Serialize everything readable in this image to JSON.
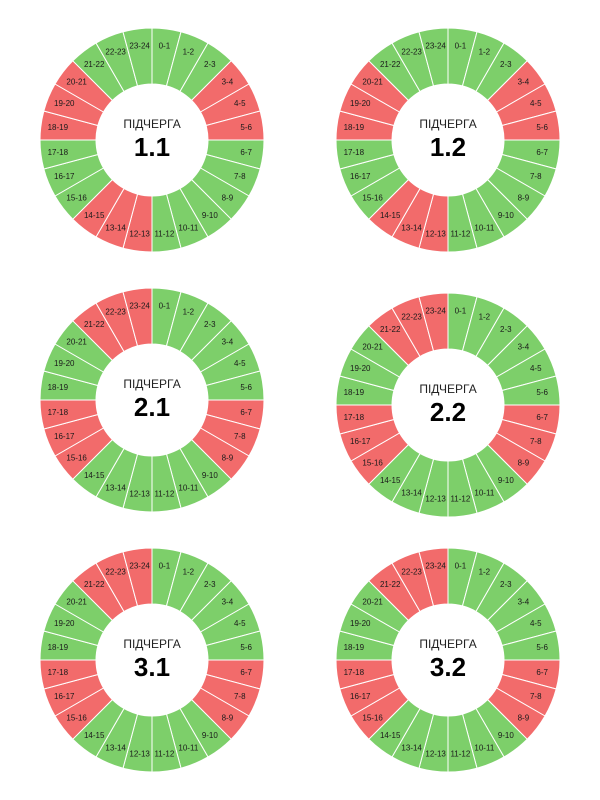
{
  "colors": {
    "on": "#7dcf6a",
    "off": "#f26b6b"
  },
  "charts": [
    {
      "caption": "ПІДЧЕРГА",
      "number": "1.1",
      "segments": [
        {
          "label": "0-1",
          "state": "on"
        },
        {
          "label": "1-2",
          "state": "on"
        },
        {
          "label": "2-3",
          "state": "on"
        },
        {
          "label": "3-4",
          "state": "off"
        },
        {
          "label": "4-5",
          "state": "off"
        },
        {
          "label": "5-6",
          "state": "off"
        },
        {
          "label": "6-7",
          "state": "on"
        },
        {
          "label": "7-8",
          "state": "on"
        },
        {
          "label": "8-9",
          "state": "on"
        },
        {
          "label": "9-10",
          "state": "on"
        },
        {
          "label": "10-11",
          "state": "on"
        },
        {
          "label": "11-12",
          "state": "on"
        },
        {
          "label": "12-13",
          "state": "off"
        },
        {
          "label": "13-14",
          "state": "off"
        },
        {
          "label": "14-15",
          "state": "off"
        },
        {
          "label": "15-16",
          "state": "on"
        },
        {
          "label": "16-17",
          "state": "on"
        },
        {
          "label": "17-18",
          "state": "on"
        },
        {
          "label": "18-19",
          "state": "off"
        },
        {
          "label": "19-20",
          "state": "off"
        },
        {
          "label": "20-21",
          "state": "off"
        },
        {
          "label": "21-22",
          "state": "on"
        },
        {
          "label": "22-23",
          "state": "on"
        },
        {
          "label": "23-24",
          "state": "on"
        }
      ]
    },
    {
      "caption": "ПІДЧЕРГА",
      "number": "1.2",
      "segments": [
        {
          "label": "0-1",
          "state": "on"
        },
        {
          "label": "1-2",
          "state": "on"
        },
        {
          "label": "2-3",
          "state": "on"
        },
        {
          "label": "3-4",
          "state": "off"
        },
        {
          "label": "4-5",
          "state": "off"
        },
        {
          "label": "5-6",
          "state": "off"
        },
        {
          "label": "6-7",
          "state": "on"
        },
        {
          "label": "7-8",
          "state": "on"
        },
        {
          "label": "8-9",
          "state": "on"
        },
        {
          "label": "9-10",
          "state": "on"
        },
        {
          "label": "10-11",
          "state": "on"
        },
        {
          "label": "11-12",
          "state": "on"
        },
        {
          "label": "12-13",
          "state": "off"
        },
        {
          "label": "13-14",
          "state": "off"
        },
        {
          "label": "14-15",
          "state": "off"
        },
        {
          "label": "15-16",
          "state": "on"
        },
        {
          "label": "16-17",
          "state": "on"
        },
        {
          "label": "17-18",
          "state": "on"
        },
        {
          "label": "18-19",
          "state": "off"
        },
        {
          "label": "19-20",
          "state": "off"
        },
        {
          "label": "20-21",
          "state": "off"
        },
        {
          "label": "21-22",
          "state": "on"
        },
        {
          "label": "22-23",
          "state": "on"
        },
        {
          "label": "23-24",
          "state": "on"
        }
      ]
    },
    {
      "caption": "ПІДЧЕРГА",
      "number": "2.1",
      "segments": [
        {
          "label": "0-1",
          "state": "on"
        },
        {
          "label": "1-2",
          "state": "on"
        },
        {
          "label": "2-3",
          "state": "on"
        },
        {
          "label": "3-4",
          "state": "on"
        },
        {
          "label": "4-5",
          "state": "on"
        },
        {
          "label": "5-6",
          "state": "on"
        },
        {
          "label": "6-7",
          "state": "off"
        },
        {
          "label": "7-8",
          "state": "off"
        },
        {
          "label": "8-9",
          "state": "off"
        },
        {
          "label": "9-10",
          "state": "on"
        },
        {
          "label": "10-11",
          "state": "on"
        },
        {
          "label": "11-12",
          "state": "on"
        },
        {
          "label": "12-13",
          "state": "on"
        },
        {
          "label": "13-14",
          "state": "on"
        },
        {
          "label": "14-15",
          "state": "on"
        },
        {
          "label": "15-16",
          "state": "off"
        },
        {
          "label": "16-17",
          "state": "off"
        },
        {
          "label": "17-18",
          "state": "off"
        },
        {
          "label": "18-19",
          "state": "on"
        },
        {
          "label": "19-20",
          "state": "on"
        },
        {
          "label": "20-21",
          "state": "on"
        },
        {
          "label": "21-22",
          "state": "off"
        },
        {
          "label": "22-23",
          "state": "off"
        },
        {
          "label": "23-24",
          "state": "off"
        }
      ]
    },
    {
      "caption": "ПІДЧЕРГА",
      "number": "2.2",
      "segments": [
        {
          "label": "0-1",
          "state": "on"
        },
        {
          "label": "1-2",
          "state": "on"
        },
        {
          "label": "2-3",
          "state": "on"
        },
        {
          "label": "3-4",
          "state": "on"
        },
        {
          "label": "4-5",
          "state": "on"
        },
        {
          "label": "5-6",
          "state": "on"
        },
        {
          "label": "6-7",
          "state": "off"
        },
        {
          "label": "7-8",
          "state": "off"
        },
        {
          "label": "8-9",
          "state": "off"
        },
        {
          "label": "9-10",
          "state": "on"
        },
        {
          "label": "10-11",
          "state": "on"
        },
        {
          "label": "11-12",
          "state": "on"
        },
        {
          "label": "12-13",
          "state": "on"
        },
        {
          "label": "13-14",
          "state": "on"
        },
        {
          "label": "14-15",
          "state": "on"
        },
        {
          "label": "15-16",
          "state": "off"
        },
        {
          "label": "16-17",
          "state": "off"
        },
        {
          "label": "17-18",
          "state": "off"
        },
        {
          "label": "18-19",
          "state": "on"
        },
        {
          "label": "19-20",
          "state": "on"
        },
        {
          "label": "20-21",
          "state": "on"
        },
        {
          "label": "21-22",
          "state": "off"
        },
        {
          "label": "22-23",
          "state": "off"
        },
        {
          "label": "23-24",
          "state": "off"
        }
      ]
    },
    {
      "caption": "ПІДЧЕРГА",
      "number": "3.1",
      "segments": [
        {
          "label": "0-1",
          "state": "on"
        },
        {
          "label": "1-2",
          "state": "on"
        },
        {
          "label": "2-3",
          "state": "on"
        },
        {
          "label": "3-4",
          "state": "on"
        },
        {
          "label": "4-5",
          "state": "on"
        },
        {
          "label": "5-6",
          "state": "on"
        },
        {
          "label": "6-7",
          "state": "off"
        },
        {
          "label": "7-8",
          "state": "off"
        },
        {
          "label": "8-9",
          "state": "off"
        },
        {
          "label": "9-10",
          "state": "on"
        },
        {
          "label": "10-11",
          "state": "on"
        },
        {
          "label": "11-12",
          "state": "on"
        },
        {
          "label": "12-13",
          "state": "on"
        },
        {
          "label": "13-14",
          "state": "on"
        },
        {
          "label": "14-15",
          "state": "on"
        },
        {
          "label": "15-16",
          "state": "off"
        },
        {
          "label": "16-17",
          "state": "off"
        },
        {
          "label": "17-18",
          "state": "off"
        },
        {
          "label": "18-19",
          "state": "on"
        },
        {
          "label": "19-20",
          "state": "on"
        },
        {
          "label": "20-21",
          "state": "on"
        },
        {
          "label": "21-22",
          "state": "off"
        },
        {
          "label": "22-23",
          "state": "off"
        },
        {
          "label": "23-24",
          "state": "off"
        }
      ]
    },
    {
      "caption": "ПІДЧЕРГА",
      "number": "3.2",
      "segments": [
        {
          "label": "0-1",
          "state": "on"
        },
        {
          "label": "1-2",
          "state": "on"
        },
        {
          "label": "2-3",
          "state": "on"
        },
        {
          "label": "3-4",
          "state": "on"
        },
        {
          "label": "4-5",
          "state": "on"
        },
        {
          "label": "5-6",
          "state": "on"
        },
        {
          "label": "6-7",
          "state": "off"
        },
        {
          "label": "7-8",
          "state": "off"
        },
        {
          "label": "8-9",
          "state": "off"
        },
        {
          "label": "9-10",
          "state": "on"
        },
        {
          "label": "10-11",
          "state": "on"
        },
        {
          "label": "11-12",
          "state": "on"
        },
        {
          "label": "12-13",
          "state": "on"
        },
        {
          "label": "13-14",
          "state": "on"
        },
        {
          "label": "14-15",
          "state": "on"
        },
        {
          "label": "15-16",
          "state": "off"
        },
        {
          "label": "16-17",
          "state": "off"
        },
        {
          "label": "17-18",
          "state": "off"
        },
        {
          "label": "18-19",
          "state": "on"
        },
        {
          "label": "19-20",
          "state": "on"
        },
        {
          "label": "20-21",
          "state": "on"
        },
        {
          "label": "21-22",
          "state": "off"
        },
        {
          "label": "22-23",
          "state": "off"
        },
        {
          "label": "23-24",
          "state": "off"
        }
      ]
    }
  ]
}
